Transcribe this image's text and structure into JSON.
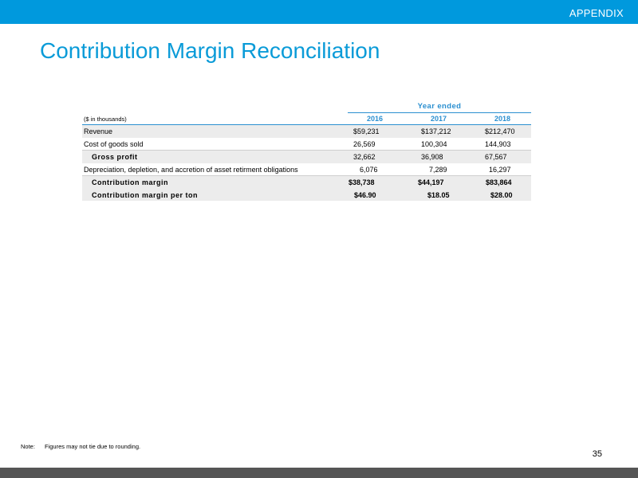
{
  "header": {
    "section_label": "APPENDIX"
  },
  "title": "Contribution Margin Reconciliation",
  "table": {
    "period_header": "Year ended",
    "units_label": "($ in thousands)",
    "years": [
      "2016",
      "2017",
      "2018"
    ],
    "rows": [
      {
        "label": "Revenue",
        "values": [
          "$59,231",
          "$137,212",
          "$212,470"
        ]
      },
      {
        "label": "Cost of goods sold",
        "values": [
          "26,569",
          "100,304",
          "144,903"
        ]
      },
      {
        "label": "Gross profit",
        "values": [
          "32,662",
          "36,908",
          "67,567"
        ]
      },
      {
        "label": "Depreciation, depletion, and accretion of asset retirment obligations",
        "values": [
          "6,076",
          "7,289",
          "16,297"
        ]
      },
      {
        "label": "Contribution margin",
        "values": [
          "$38,738",
          "$44,197",
          "$83,864"
        ]
      },
      {
        "label": "Contribution margin per ton",
        "values": [
          "$46.90",
          "$18.05",
          "$28.00"
        ]
      }
    ]
  },
  "footer": {
    "note_label": "Note:",
    "note_text": "Figures may not tie due to rounding.",
    "page_number": "35"
  }
}
